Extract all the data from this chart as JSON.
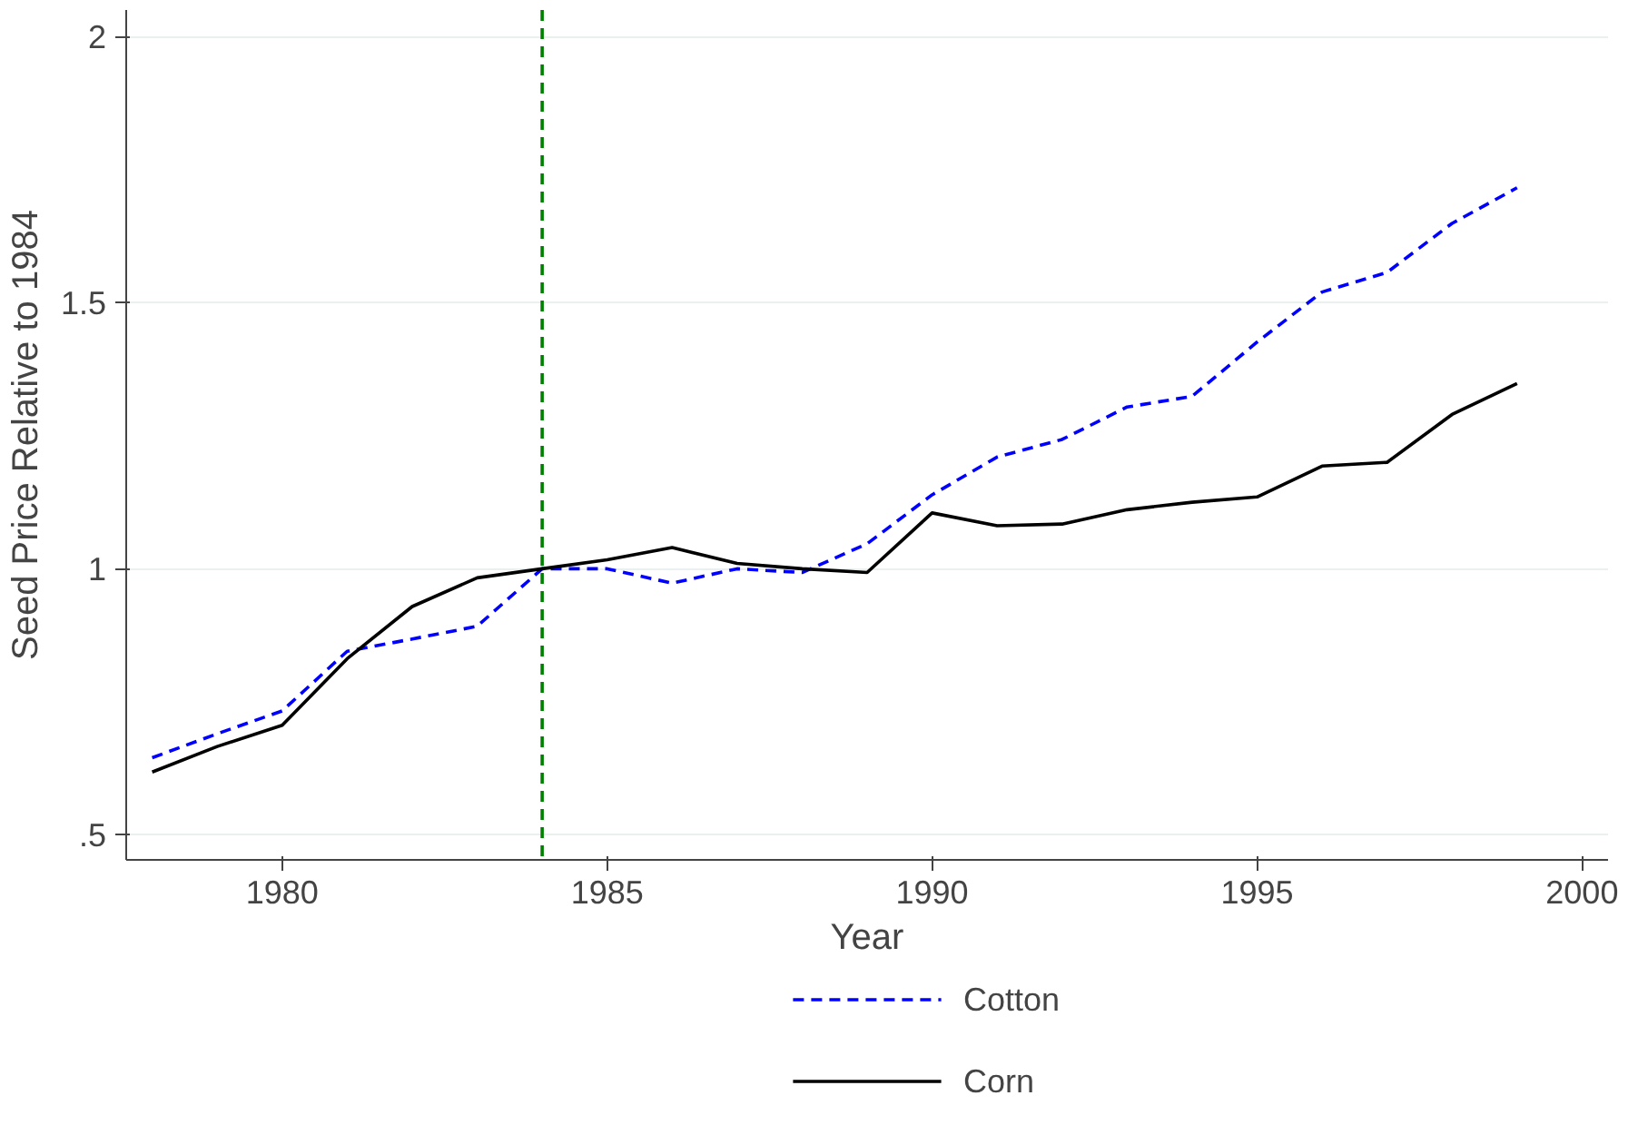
{
  "chart_data": {
    "type": "line",
    "xlabel": "Year",
    "ylabel": "Seed Price Relative to 1984",
    "x": [
      1978,
      1979,
      1980,
      1981,
      1982,
      1983,
      1984,
      1985,
      1986,
      1987,
      1988,
      1989,
      1990,
      1991,
      1992,
      1993,
      1994,
      1995,
      1996,
      1997,
      1998,
      1999
    ],
    "series": [
      {
        "name": "Cotton",
        "color": "#0000ff",
        "line_style": "dashed",
        "values": [
          0.645,
          0.69,
          0.733,
          0.845,
          0.868,
          0.892,
          1.0,
          1.0,
          0.973,
          1.0,
          0.993,
          1.047,
          1.139,
          1.21,
          1.243,
          1.304,
          1.324,
          1.426,
          1.52,
          1.557,
          1.649,
          1.716
        ]
      },
      {
        "name": "Corn",
        "color": "#000000",
        "line_style": "solid",
        "values": [
          0.618,
          0.666,
          0.706,
          0.831,
          0.929,
          0.983,
          1.0,
          1.017,
          1.04,
          1.01,
          1.0,
          0.993,
          1.105,
          1.081,
          1.084,
          1.111,
          1.125,
          1.135,
          1.193,
          1.2,
          1.29,
          1.348
        ]
      }
    ],
    "xlim": [
      1977.6,
      2000.4
    ],
    "ylim": [
      0.453,
      2.05
    ],
    "xticks": [
      1980,
      1985,
      1990,
      1995,
      2000
    ],
    "yticks": [
      {
        "value": 0.5,
        "label": ".5"
      },
      1,
      1.5,
      2
    ],
    "ref_lines": [
      {
        "axis": "x",
        "value": 1984,
        "color": "#008000",
        "line_style": "dashed"
      }
    ],
    "grid": "y",
    "legend": "bottom"
  }
}
